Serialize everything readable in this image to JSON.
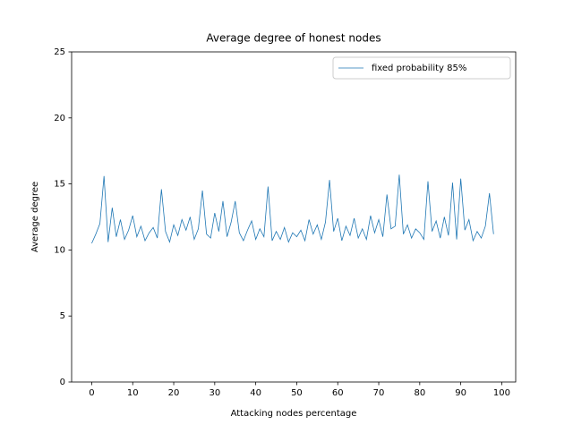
{
  "chart_data": {
    "type": "line",
    "title": "Average degree of honest nodes",
    "x_label": "Attacking nodes percentage",
    "y_label": "Average degree",
    "x": [
      0,
      1,
      2,
      3,
      4,
      5,
      6,
      7,
      8,
      9,
      10,
      11,
      12,
      13,
      14,
      15,
      16,
      17,
      18,
      19,
      20,
      21,
      22,
      23,
      24,
      25,
      26,
      27,
      28,
      29,
      30,
      31,
      32,
      33,
      34,
      35,
      36,
      37,
      38,
      39,
      40,
      41,
      42,
      43,
      44,
      45,
      46,
      47,
      48,
      49,
      50,
      51,
      52,
      53,
      54,
      55,
      56,
      57,
      58,
      59,
      60,
      61,
      62,
      63,
      64,
      65,
      66,
      67,
      68,
      69,
      70,
      71,
      72,
      73,
      74,
      75,
      76,
      77,
      78,
      79,
      80,
      81,
      82,
      83,
      84,
      85,
      86,
      87,
      88,
      89,
      90,
      91,
      92,
      93,
      94,
      95,
      96,
      97,
      98
    ],
    "series": [
      {
        "name": "fixed probability 85%",
        "color": "#1f77b4",
        "values": [
          10.5,
          11.2,
          12.0,
          15.6,
          10.6,
          13.2,
          11.0,
          12.3,
          10.8,
          11.5,
          12.6,
          11.0,
          11.8,
          10.7,
          11.3,
          11.7,
          10.9,
          14.6,
          11.4,
          10.6,
          11.9,
          11.1,
          12.3,
          11.5,
          12.5,
          10.8,
          11.6,
          14.5,
          11.2,
          10.9,
          12.8,
          11.4,
          13.7,
          11.0,
          12.1,
          13.7,
          11.3,
          10.7,
          11.5,
          12.2,
          10.8,
          11.6,
          11.0,
          14.8,
          10.7,
          11.4,
          10.8,
          11.7,
          10.6,
          11.3,
          11.0,
          11.5,
          10.7,
          12.3,
          11.2,
          11.9,
          10.8,
          12.1,
          15.3,
          11.4,
          12.4,
          10.7,
          11.8,
          11.1,
          12.4,
          10.9,
          11.6,
          10.8,
          12.6,
          11.3,
          12.3,
          11.0,
          14.2,
          11.6,
          11.8,
          15.7,
          11.2,
          11.9,
          10.9,
          11.6,
          11.3,
          10.8,
          15.2,
          11.4,
          12.2,
          10.9,
          12.5,
          11.1,
          15.1,
          10.8,
          15.4,
          11.5,
          12.3,
          10.7,
          11.4,
          10.9,
          11.8,
          14.3,
          11.2
        ]
      }
    ],
    "xlim": [
      -4.9,
      103.4
    ],
    "ylim": [
      0,
      25
    ],
    "xticks": [
      0,
      10,
      20,
      30,
      40,
      50,
      60,
      70,
      80,
      90,
      100
    ],
    "yticks": [
      0,
      5,
      10,
      15,
      20,
      25
    ],
    "legend": "upper right"
  }
}
